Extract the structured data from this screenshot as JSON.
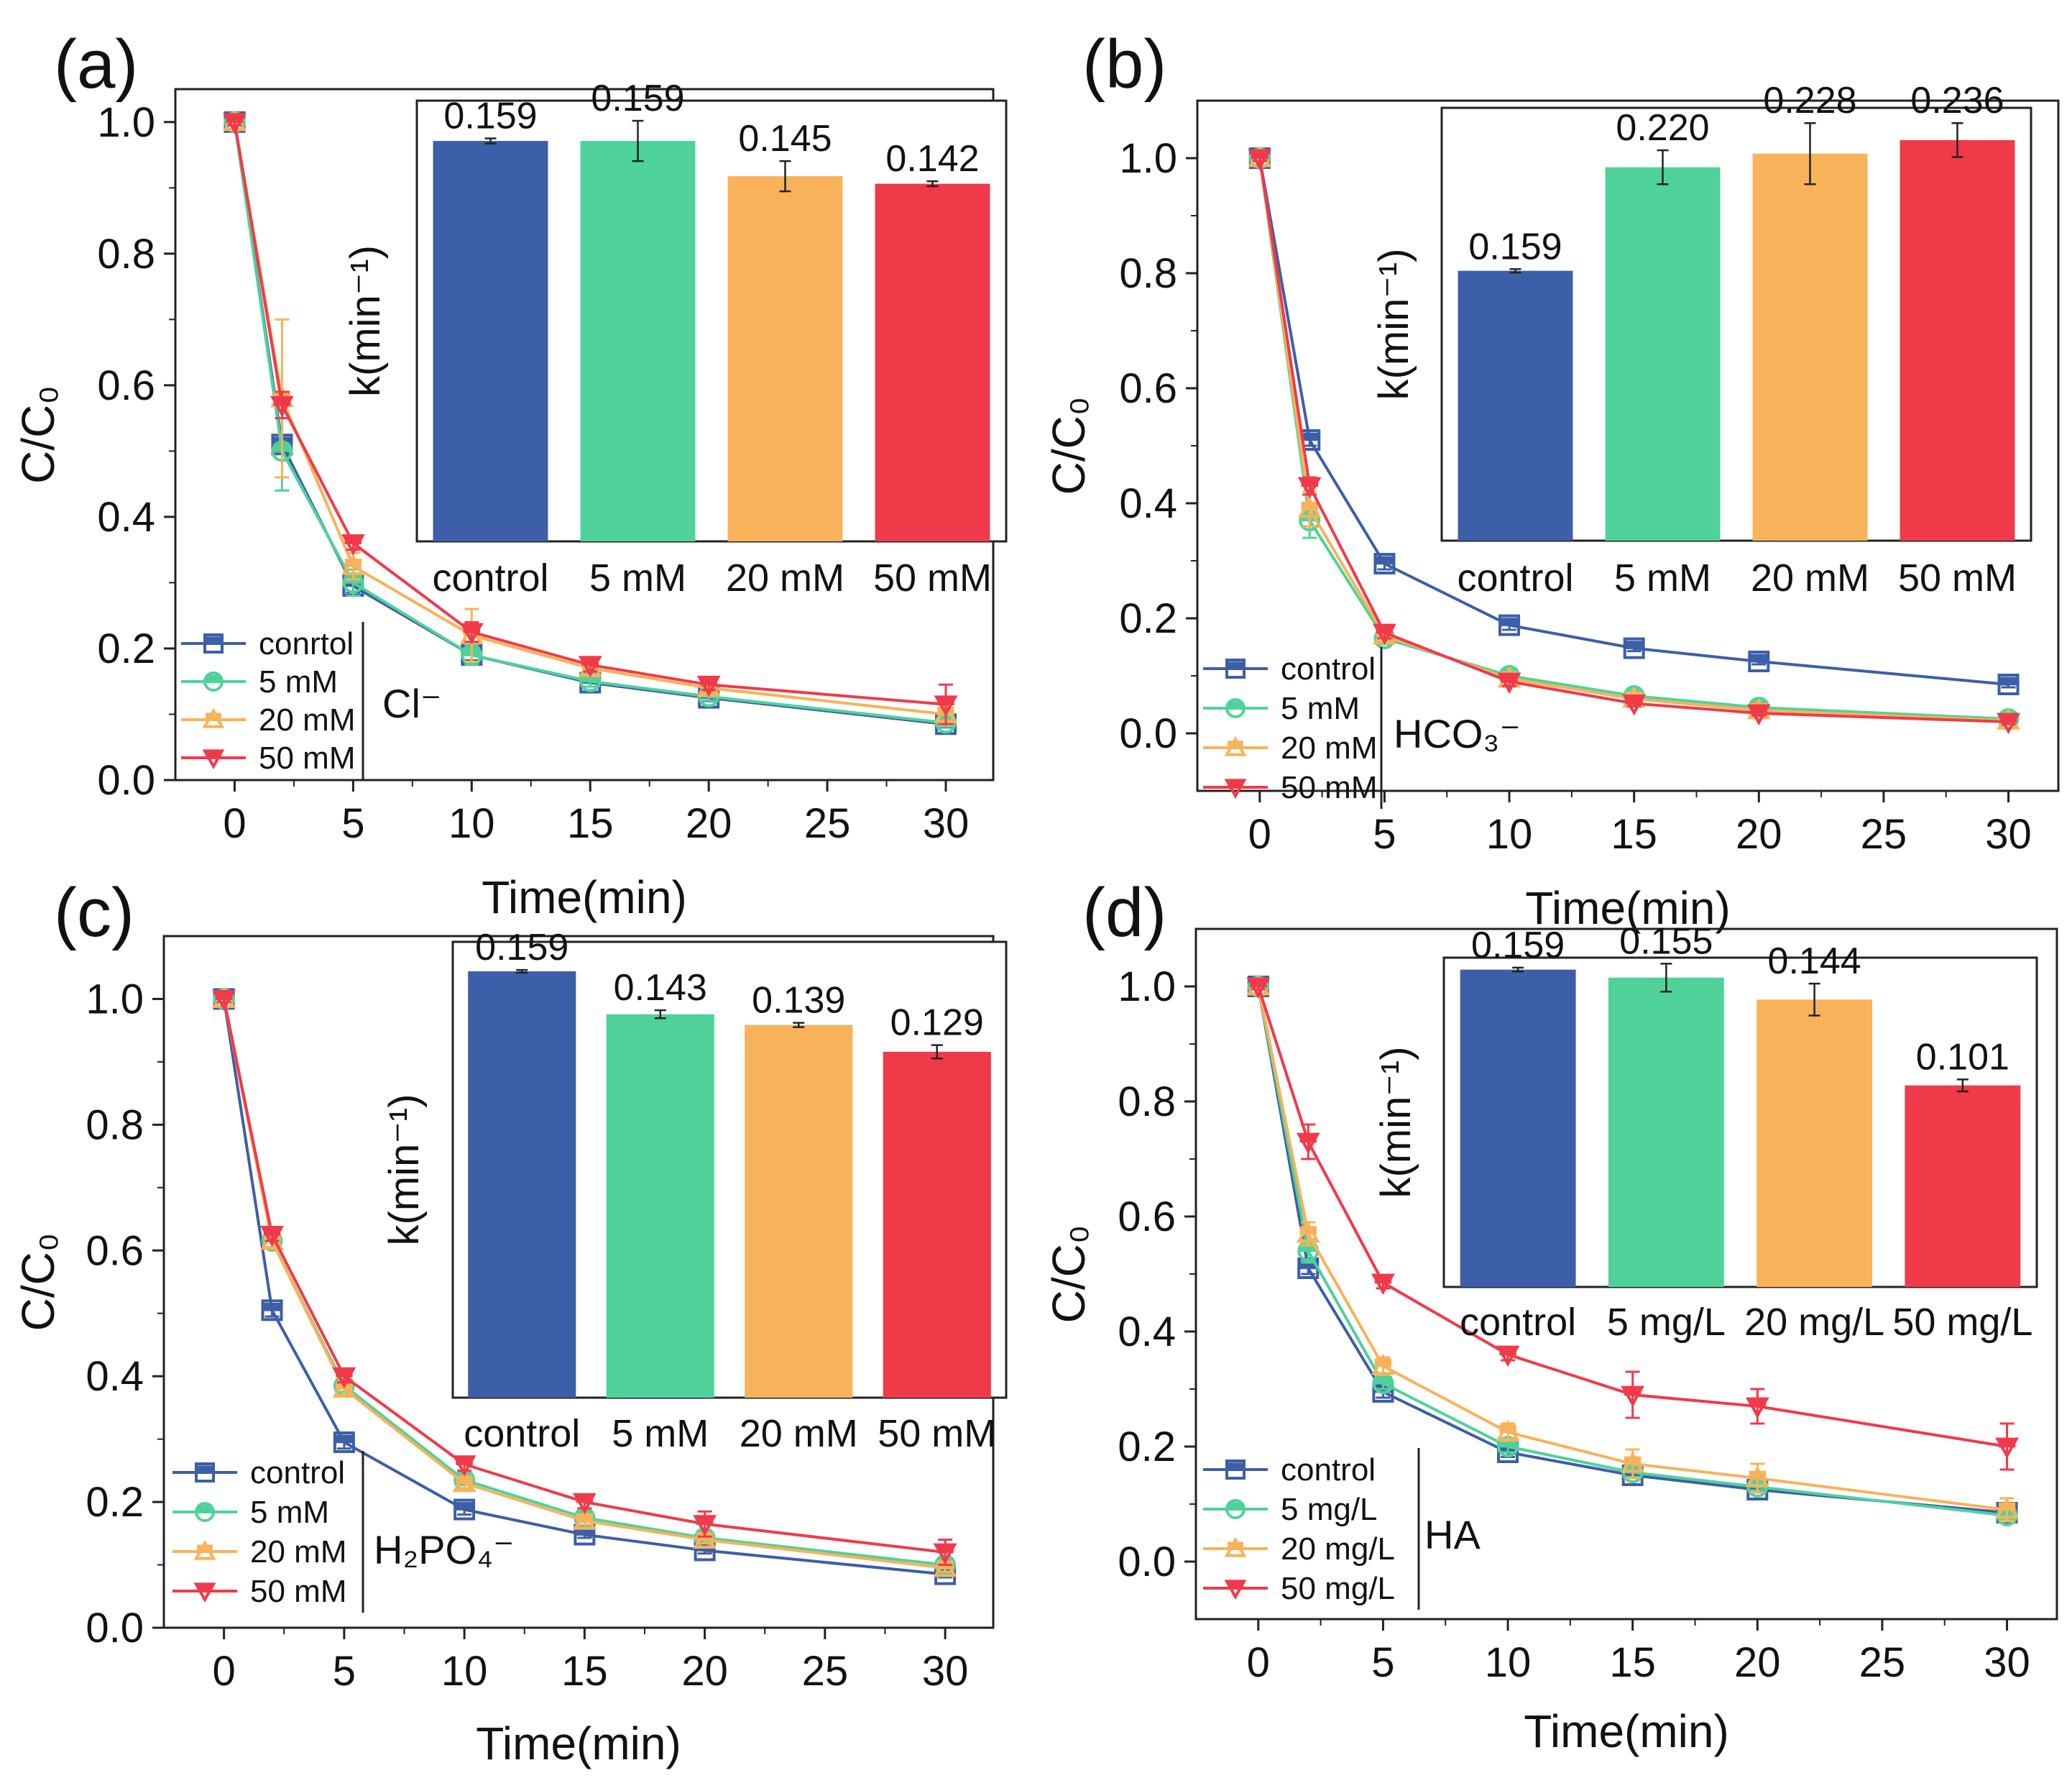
{
  "figure": "Four-panel figure of C/C0 vs time with inset rate-constant bar charts",
  "colors": {
    "control": "#3D5EA8",
    "level1": "#4FD29A",
    "level2": "#F8B25A",
    "level3": "#F03A4A"
  },
  "chart_data": [
    {
      "type": "line",
      "panel_label": "(a)",
      "ion_label": "Cl⁻",
      "xlabel": "Time(min)",
      "ylabel": "C/C₀",
      "x": [
        0,
        2,
        5,
        10,
        15,
        20,
        30
      ],
      "xlim": [
        -2.5,
        32
      ],
      "ylim": [
        0,
        1.05
      ],
      "xticks": [
        "0",
        "5",
        "10",
        "15",
        "20",
        "25",
        "30"
      ],
      "yticks": [
        "0.0",
        "0.2",
        "0.4",
        "0.6",
        "0.8",
        "1.0"
      ],
      "series": [
        {
          "name": "conrtol",
          "values": [
            1.0,
            0.51,
            0.295,
            0.19,
            0.148,
            0.125,
            0.085
          ],
          "errors": [
            0.005,
            0.01,
            0.01,
            0.008,
            0.006,
            0.005,
            0.005
          ]
        },
        {
          "name": "5 mM",
          "values": [
            1.0,
            0.5,
            0.3,
            0.19,
            0.15,
            0.127,
            0.087
          ],
          "errors": [
            0.005,
            0.06,
            0.02,
            0.015,
            0.008,
            0.006,
            0.006
          ]
        },
        {
          "name": "20 mM",
          "values": [
            1.0,
            0.58,
            0.325,
            0.22,
            0.17,
            0.14,
            0.1
          ],
          "errors": [
            0.005,
            0.12,
            0.02,
            0.04,
            0.01,
            0.008,
            0.01
          ]
        },
        {
          "name": "50 mM",
          "values": [
            1.0,
            0.57,
            0.36,
            0.225,
            0.175,
            0.145,
            0.115
          ],
          "errors": [
            0.005,
            0.02,
            0.01,
            0.015,
            0.01,
            0.008,
            0.03
          ]
        }
      ],
      "inset": {
        "type": "bar",
        "ylabel": "k(min⁻¹)",
        "categories": [
          "control",
          "5 mM",
          "20 mM",
          "50 mM"
        ],
        "values": [
          0.159,
          0.159,
          0.145,
          0.142
        ],
        "value_labels": [
          "0.159",
          "0.159",
          "0.145",
          "0.142"
        ],
        "errors": [
          0.001,
          0.008,
          0.006,
          0.001
        ],
        "ylim": [
          0,
          0.175
        ]
      }
    },
    {
      "type": "line",
      "panel_label": "(b)",
      "ion_label": "HCO₃⁻",
      "xlabel": "Time(min)",
      "ylabel": "C/C₀",
      "x": [
        0,
        2,
        5,
        10,
        15,
        20,
        30
      ],
      "xlim": [
        -2.5,
        32
      ],
      "ylim": [
        -0.1,
        1.1
      ],
      "xticks": [
        "0",
        "5",
        "10",
        "15",
        "20",
        "25",
        "30"
      ],
      "yticks": [
        "0.0",
        "0.2",
        "0.4",
        "0.6",
        "0.8",
        "1.0"
      ],
      "series": [
        {
          "name": "control",
          "values": [
            1.0,
            0.51,
            0.295,
            0.188,
            0.148,
            0.125,
            0.085
          ],
          "errors": [
            0.005,
            0.01,
            0.01,
            0.008,
            0.005,
            0.005,
            0.005
          ]
        },
        {
          "name": "5 mM",
          "values": [
            1.0,
            0.37,
            0.165,
            0.1,
            0.065,
            0.045,
            0.025
          ],
          "errors": [
            0.005,
            0.03,
            0.01,
            0.008,
            0.006,
            0.005,
            0.004
          ]
        },
        {
          "name": "20 mM",
          "values": [
            1.0,
            0.39,
            0.17,
            0.095,
            0.06,
            0.04,
            0.022
          ],
          "errors": [
            0.005,
            0.03,
            0.01,
            0.008,
            0.006,
            0.005,
            0.004
          ]
        },
        {
          "name": "50 mM",
          "values": [
            1.0,
            0.43,
            0.175,
            0.09,
            0.052,
            0.035,
            0.02
          ],
          "errors": [
            0.005,
            0.015,
            0.01,
            0.008,
            0.005,
            0.004,
            0.004
          ]
        }
      ],
      "inset": {
        "type": "bar",
        "ylabel": "k(min⁻¹)",
        "categories": [
          "control",
          "5 mM",
          "20 mM",
          "50 mM"
        ],
        "values": [
          0.159,
          0.22,
          0.228,
          0.236
        ],
        "value_labels": [
          "0.159",
          "0.220",
          "0.228",
          "0.236"
        ],
        "errors": [
          0.001,
          0.01,
          0.018,
          0.01
        ],
        "ylim": [
          0,
          0.255
        ]
      }
    },
    {
      "type": "line",
      "panel_label": "(c)",
      "ion_label": "H₂PO₄⁻",
      "xlabel": "Time(min)",
      "ylabel": "C/C₀",
      "x": [
        0,
        2,
        5,
        10,
        15,
        20,
        30
      ],
      "xlim": [
        -2.5,
        32
      ],
      "ylim": [
        0,
        1.1
      ],
      "xticks": [
        "0",
        "5",
        "10",
        "15",
        "20",
        "25",
        "30"
      ],
      "yticks": [
        "0.0",
        "0.2",
        "0.4",
        "0.6",
        "0.8",
        "1.0"
      ],
      "series": [
        {
          "name": "control",
          "values": [
            1.0,
            0.505,
            0.295,
            0.188,
            0.148,
            0.123,
            0.085
          ],
          "errors": [
            0.005,
            0.01,
            0.01,
            0.008,
            0.005,
            0.005,
            0.005
          ]
        },
        {
          "name": "5 mM",
          "values": [
            1.0,
            0.615,
            0.385,
            0.235,
            0.175,
            0.143,
            0.1
          ],
          "errors": [
            0.005,
            0.01,
            0.01,
            0.008,
            0.006,
            0.006,
            0.006
          ]
        },
        {
          "name": "20 mM",
          "values": [
            1.0,
            0.615,
            0.38,
            0.23,
            0.17,
            0.14,
            0.095
          ],
          "errors": [
            0.005,
            0.01,
            0.01,
            0.008,
            0.006,
            0.006,
            0.006
          ]
        },
        {
          "name": "50 mM",
          "values": [
            1.0,
            0.625,
            0.4,
            0.26,
            0.2,
            0.165,
            0.12
          ],
          "errors": [
            0.005,
            0.01,
            0.01,
            0.01,
            0.01,
            0.02,
            0.02
          ]
        }
      ],
      "inset": {
        "type": "bar",
        "ylabel": "k(min⁻¹)",
        "categories": [
          "control",
          "5 mM",
          "20 mM",
          "50 mM"
        ],
        "values": [
          0.159,
          0.143,
          0.139,
          0.129
        ],
        "value_labels": [
          "0.159",
          "0.143",
          "0.139",
          "0.129"
        ],
        "errors": [
          0.0005,
          0.0015,
          0.0008,
          0.0025
        ],
        "ylim": [
          0,
          0.17
        ]
      }
    },
    {
      "type": "line",
      "panel_label": "(d)",
      "ion_label": "HA",
      "xlabel": "Time(min)",
      "ylabel": "C/C₀",
      "x": [
        0,
        2,
        5,
        10,
        15,
        20,
        30
      ],
      "xlim": [
        -2.5,
        32
      ],
      "ylim": [
        -0.1,
        1.1
      ],
      "xticks": [
        "0",
        "5",
        "10",
        "15",
        "20",
        "25",
        "30"
      ],
      "yticks": [
        "0.0",
        "0.2",
        "0.4",
        "0.6",
        "0.8",
        "1.0"
      ],
      "series": [
        {
          "name": "control",
          "values": [
            1.0,
            0.51,
            0.295,
            0.19,
            0.15,
            0.125,
            0.085
          ],
          "errors": [
            0.005,
            0.01,
            0.01,
            0.008,
            0.005,
            0.005,
            0.005
          ]
        },
        {
          "name": "5 mg/L",
          "values": [
            1.0,
            0.54,
            0.31,
            0.2,
            0.155,
            0.13,
            0.08
          ],
          "errors": [
            0.005,
            0.02,
            0.01,
            0.01,
            0.008,
            0.006,
            0.006
          ]
        },
        {
          "name": "20 mg/L",
          "values": [
            1.0,
            0.57,
            0.34,
            0.225,
            0.17,
            0.145,
            0.09
          ],
          "errors": [
            0.005,
            0.02,
            0.015,
            0.015,
            0.025,
            0.025,
            0.02
          ]
        },
        {
          "name": "50 mg/L",
          "values": [
            1.0,
            0.73,
            0.485,
            0.36,
            0.29,
            0.27,
            0.2
          ],
          "errors": [
            0.005,
            0.03,
            0.01,
            0.01,
            0.04,
            0.03,
            0.04
          ]
        }
      ],
      "inset": {
        "type": "bar",
        "ylabel": "k(min⁻¹)",
        "categories": [
          "control",
          "5 mg/L",
          "20 mg/L",
          "50 mg/L"
        ],
        "values": [
          0.159,
          0.155,
          0.144,
          0.101
        ],
        "value_labels": [
          "0.159",
          "0.155",
          "0.144",
          "0.101"
        ],
        "errors": [
          0.001,
          0.007,
          0.008,
          0.003
        ],
        "ylim": [
          0,
          0.165
        ]
      }
    }
  ]
}
